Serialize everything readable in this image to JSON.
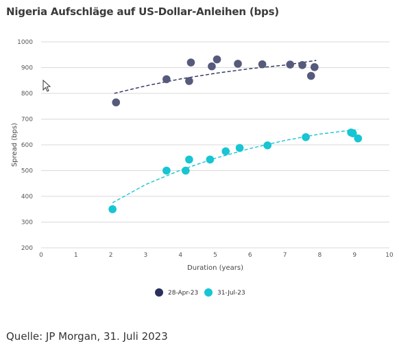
{
  "title": "Nigeria Aufschläge auf US-Dollar-Anleihen (bps)",
  "source": "Quelle: JP Morgan, 31. Juli 2023",
  "colors": {
    "series1": "#565a7b",
    "series1_trend": "#2b2f5c",
    "series2": "#17c5d3",
    "series2_trend": "#17c5d3",
    "grid": "#d9d9d9",
    "cursor": "#333333"
  },
  "chart_data": {
    "type": "scatter",
    "title": "Nigeria Aufschläge auf US-Dollar-Anleihen (bps)",
    "xlabel": "Duration (years)",
    "ylabel": "Spread (bps)",
    "xlim": [
      0,
      10
    ],
    "ylim": [
      200,
      1000
    ],
    "x_ticks": [
      "0",
      "1",
      "2",
      "3",
      "4",
      "5",
      "6",
      "7",
      "8",
      "9",
      "10"
    ],
    "y_ticks": [
      "200",
      "300",
      "400",
      "500",
      "600",
      "700",
      "800",
      "900",
      "1000"
    ],
    "grid": "horizontal",
    "legend_position": "bottom",
    "trendline": "dashed",
    "series": [
      {
        "name": "28-Apr-23",
        "points": [
          [
            2.15,
            765
          ],
          [
            3.6,
            855
          ],
          [
            4.25,
            848
          ],
          [
            4.3,
            920
          ],
          [
            4.9,
            905
          ],
          [
            5.05,
            932
          ],
          [
            5.65,
            915
          ],
          [
            6.35,
            913
          ],
          [
            7.15,
            912
          ],
          [
            7.5,
            910
          ],
          [
            7.75,
            868
          ],
          [
            7.85,
            902
          ]
        ],
        "trend": [
          [
            2.1,
            800
          ],
          [
            3,
            829
          ],
          [
            4,
            856
          ],
          [
            5,
            878
          ],
          [
            6,
            896
          ],
          [
            7,
            910
          ],
          [
            7.9,
            928
          ]
        ]
      },
      {
        "name": "31-Jul-23",
        "points": [
          [
            2.05,
            350
          ],
          [
            3.6,
            500
          ],
          [
            4.15,
            500
          ],
          [
            4.25,
            543
          ],
          [
            4.85,
            543
          ],
          [
            5.3,
            575
          ],
          [
            5.7,
            588
          ],
          [
            6.5,
            598
          ],
          [
            7.6,
            630
          ],
          [
            8.9,
            648
          ],
          [
            8.95,
            645
          ],
          [
            9.1,
            625
          ]
        ],
        "trend": [
          [
            2.05,
            375
          ],
          [
            3,
            446
          ],
          [
            4,
            502
          ],
          [
            5,
            548
          ],
          [
            6,
            586
          ],
          [
            7,
            617
          ],
          [
            8,
            642
          ],
          [
            9.1,
            660
          ]
        ]
      }
    ]
  }
}
